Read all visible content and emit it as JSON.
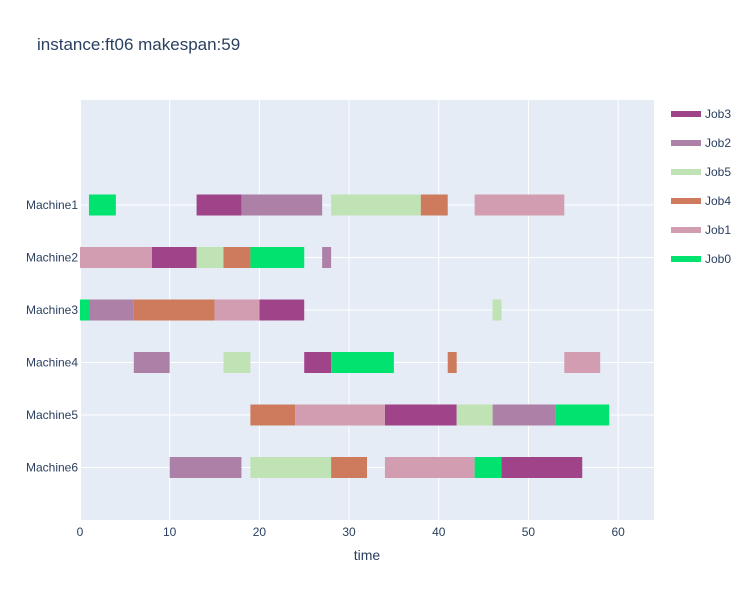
{
  "chart_data": {
    "type": "gantt",
    "title": "instance:ft06 makespan:59",
    "xlabel": "time",
    "ylabel": "",
    "xlim": [
      0,
      64
    ],
    "x_ticks": [
      0,
      10,
      20,
      30,
      40,
      50,
      60
    ],
    "grid": true,
    "legend_position": "right",
    "machines": [
      "Machine1",
      "Machine2",
      "Machine3",
      "Machine4",
      "Machine5",
      "Machine6"
    ],
    "series": [
      {
        "name": "Job3",
        "color": "#a0448a",
        "tasks": [
          {
            "machine": "Machine1",
            "start": 13,
            "end": 18
          },
          {
            "machine": "Machine2",
            "start": 8,
            "end": 13
          },
          {
            "machine": "Machine3",
            "start": 20,
            "end": 25
          },
          {
            "machine": "Machine4",
            "start": 25,
            "end": 28
          },
          {
            "machine": "Machine5",
            "start": 34,
            "end": 42
          },
          {
            "machine": "Machine6",
            "start": 47,
            "end": 56
          }
        ]
      },
      {
        "name": "Job2",
        "color": "#ac80a7",
        "tasks": [
          {
            "machine": "Machine1",
            "start": 18,
            "end": 27
          },
          {
            "machine": "Machine2",
            "start": 27,
            "end": 28
          },
          {
            "machine": "Machine3",
            "start": 1,
            "end": 6
          },
          {
            "machine": "Machine4",
            "start": 6,
            "end": 10
          },
          {
            "machine": "Machine5",
            "start": 46,
            "end": 53
          },
          {
            "machine": "Machine6",
            "start": 10,
            "end": 18
          }
        ]
      },
      {
        "name": "Job5",
        "color": "#bfe3b4",
        "tasks": [
          {
            "machine": "Machine1",
            "start": 28,
            "end": 38
          },
          {
            "machine": "Machine2",
            "start": 13,
            "end": 16
          },
          {
            "machine": "Machine3",
            "start": 46,
            "end": 47
          },
          {
            "machine": "Machine4",
            "start": 16,
            "end": 19
          },
          {
            "machine": "Machine5",
            "start": 42,
            "end": 46
          },
          {
            "machine": "Machine6",
            "start": 19,
            "end": 28
          }
        ]
      },
      {
        "name": "Job4",
        "color": "#cd7b5c",
        "tasks": [
          {
            "machine": "Machine1",
            "start": 38,
            "end": 41
          },
          {
            "machine": "Machine2",
            "start": 16,
            "end": 19
          },
          {
            "machine": "Machine3",
            "start": 6,
            "end": 15
          },
          {
            "machine": "Machine4",
            "start": 41,
            "end": 42
          },
          {
            "machine": "Machine5",
            "start": 19,
            "end": 24
          },
          {
            "machine": "Machine6",
            "start": 28,
            "end": 32
          }
        ]
      },
      {
        "name": "Job1",
        "color": "#d29db0",
        "tasks": [
          {
            "machine": "Machine1",
            "start": 44,
            "end": 54
          },
          {
            "machine": "Machine2",
            "start": 0,
            "end": 8
          },
          {
            "machine": "Machine3",
            "start": 15,
            "end": 20
          },
          {
            "machine": "Machine4",
            "start": 54,
            "end": 58
          },
          {
            "machine": "Machine5",
            "start": 24,
            "end": 34
          },
          {
            "machine": "Machine6",
            "start": 34,
            "end": 44
          }
        ]
      },
      {
        "name": "Job0",
        "color": "#00e36e",
        "tasks": [
          {
            "machine": "Machine1",
            "start": 1,
            "end": 4
          },
          {
            "machine": "Machine2",
            "start": 19,
            "end": 25
          },
          {
            "machine": "Machine3",
            "start": 0,
            "end": 1
          },
          {
            "machine": "Machine4",
            "start": 28,
            "end": 35
          },
          {
            "machine": "Machine5",
            "start": 53,
            "end": 59
          },
          {
            "machine": "Machine6",
            "start": 44,
            "end": 47
          }
        ]
      }
    ]
  }
}
